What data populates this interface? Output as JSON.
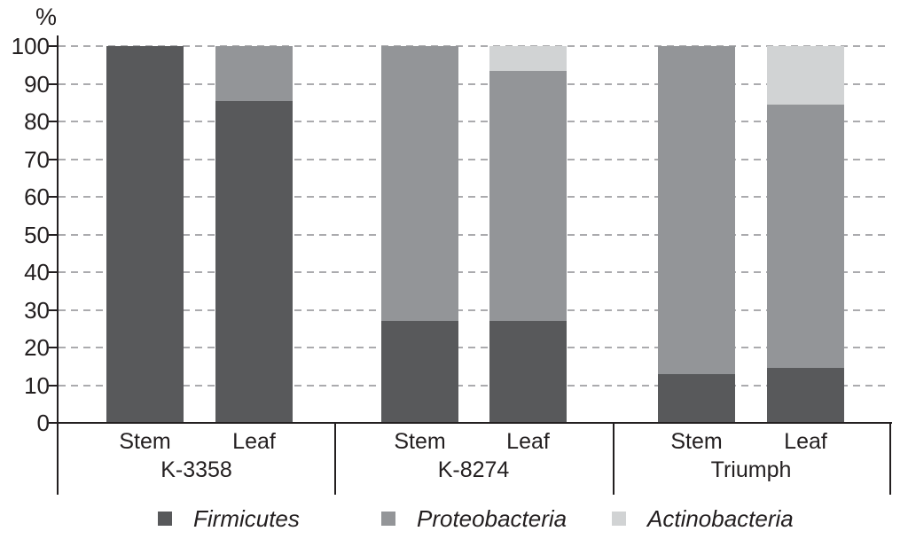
{
  "chart_data": {
    "type": "bar",
    "stacked": true,
    "title": "",
    "xlabel": "",
    "ylabel": "%",
    "ylim": [
      0,
      100
    ],
    "yticks": [
      0,
      10,
      20,
      30,
      40,
      50,
      60,
      70,
      80,
      90,
      100
    ],
    "grid": "horizontal-dashed",
    "legend_position": "bottom",
    "categories": [
      "K-3358 Stem",
      "K-3358 Leaf",
      "K-8274 Stem",
      "K-8274 Leaf",
      "Triumph Stem",
      "Triumph Leaf"
    ],
    "groups": [
      {
        "label": "K-3358",
        "samples": [
          "Stem",
          "Leaf"
        ]
      },
      {
        "label": "K-8274",
        "samples": [
          "Stem",
          "Leaf"
        ]
      },
      {
        "label": "Triumph",
        "samples": [
          "Stem",
          "Leaf"
        ]
      }
    ],
    "series": [
      {
        "name": "Firmicutes",
        "color": "#58595B",
        "values": [
          100,
          85.5,
          27,
          27,
          13,
          14.5
        ]
      },
      {
        "name": "Proteobacteria",
        "color": "#939598",
        "values": [
          0,
          14.5,
          73,
          66.5,
          87,
          70
        ]
      },
      {
        "name": "Actinobacteria",
        "color": "#D1D3D4",
        "values": [
          0,
          0,
          0,
          6.5,
          0,
          15.5
        ]
      }
    ],
    "colors": {
      "axis": "#231F20",
      "gridline": "#ABABAE",
      "background": "#FFFFFF"
    }
  }
}
